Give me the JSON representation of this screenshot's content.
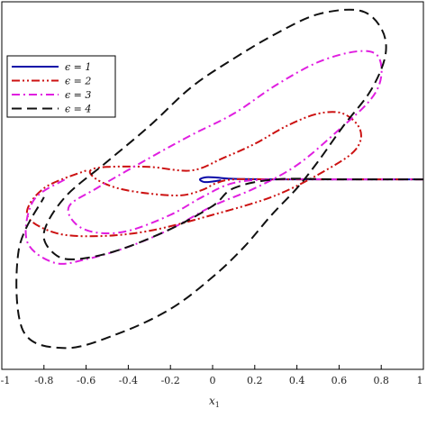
{
  "chart_data": {
    "type": "line",
    "title": "",
    "xlabel": "x",
    "xlabel_sub": "1",
    "ylabel": "",
    "xlim": [
      -1,
      1
    ],
    "ylim": [
      -1.07,
      1
    ],
    "x_ticks": [
      "-1",
      "-0.8",
      "-0.6",
      "-0.4",
      "-0.2",
      "0",
      "0.2",
      "0.4",
      "0.6",
      "0.8",
      "1"
    ],
    "x_tick_values": [
      -1,
      -0.8,
      -0.6,
      -0.4,
      -0.2,
      0,
      0.2,
      0.4,
      0.6,
      0.8,
      1
    ],
    "grid": false,
    "legend_position": "top-left",
    "series": [
      {
        "name": "ϵ = 1",
        "color": "#0a0aa8",
        "dash": "solid",
        "x": [
          1.0,
          0.6,
          0.3,
          0.1,
          0.02,
          -0.03,
          -0.06,
          -0.04,
          0.0,
          0.04
        ],
        "y": [
          0.0,
          0.0,
          0.0,
          0.003,
          0.01,
          0.012,
          0.0,
          -0.015,
          -0.012,
          -0.005
        ]
      },
      {
        "name": "ϵ = 2",
        "color": "#cc1111",
        "dash": "dash-dot-dot",
        "x": [
          1.0,
          0.6,
          0.3,
          0.1,
          0.02,
          -0.05,
          -0.15,
          -0.3,
          -0.45,
          -0.55,
          -0.58,
          -0.5,
          -0.3,
          -0.1,
          0.05,
          0.2,
          0.35,
          0.5,
          0.62,
          0.7,
          0.68,
          0.55,
          0.3,
          0.0,
          -0.3,
          -0.55,
          -0.75,
          -0.88,
          -0.8,
          -0.6
        ],
        "y": [
          0.0,
          0.0,
          0.0,
          0.0,
          -0.02,
          -0.06,
          -0.09,
          -0.08,
          -0.05,
          0.0,
          0.05,
          0.07,
          0.07,
          0.05,
          0.12,
          0.2,
          0.3,
          0.37,
          0.37,
          0.28,
          0.17,
          0.06,
          -0.09,
          -0.2,
          -0.29,
          -0.32,
          -0.3,
          -0.2,
          -0.05,
          0.05
        ]
      },
      {
        "name": "ϵ = 3",
        "color": "#e01ee0",
        "dash": "dash-dot",
        "x": [
          1.0,
          0.6,
          0.3,
          0.1,
          -0.05,
          -0.2,
          -0.4,
          -0.55,
          -0.65,
          -0.68,
          -0.55,
          -0.3,
          -0.1,
          0.1,
          0.3,
          0.5,
          0.68,
          0.78,
          0.8,
          0.75,
          0.6,
          0.4,
          0.2,
          0.0,
          -0.2,
          -0.4,
          -0.6,
          -0.75,
          -0.88,
          -0.85,
          -0.7
        ],
        "y": [
          0.0,
          0.0,
          0.0,
          -0.02,
          -0.1,
          -0.2,
          -0.29,
          -0.3,
          -0.25,
          -0.15,
          -0.05,
          0.12,
          0.25,
          0.37,
          0.53,
          0.66,
          0.72,
          0.7,
          0.58,
          0.45,
          0.28,
          0.08,
          -0.05,
          -0.15,
          -0.28,
          -0.38,
          -0.45,
          -0.47,
          -0.35,
          -0.12,
          0.0
        ]
      },
      {
        "name": "ϵ = 4",
        "color": "#111111",
        "dash": "dash",
        "x": [
          1.0,
          0.6,
          0.3,
          0.1,
          0.0,
          -0.2,
          -0.45,
          -0.65,
          -0.75,
          -0.8,
          -0.7,
          -0.5,
          -0.3,
          -0.1,
          0.1,
          0.3,
          0.5,
          0.7,
          0.8,
          0.82,
          0.75,
          0.62,
          0.5,
          0.4,
          0.28,
          0.15,
          0.0,
          -0.2,
          -0.45,
          -0.7,
          -0.9,
          -0.92,
          -0.8
        ],
        "y": [
          0.0,
          0.0,
          0.0,
          -0.05,
          -0.15,
          -0.28,
          -0.4,
          -0.45,
          -0.42,
          -0.3,
          -0.1,
          0.1,
          0.3,
          0.52,
          0.68,
          0.82,
          0.93,
          0.95,
          0.85,
          0.7,
          0.5,
          0.3,
          0.1,
          -0.05,
          -0.2,
          -0.38,
          -0.55,
          -0.73,
          -0.87,
          -0.95,
          -0.85,
          -0.4,
          -0.1
        ]
      }
    ]
  }
}
